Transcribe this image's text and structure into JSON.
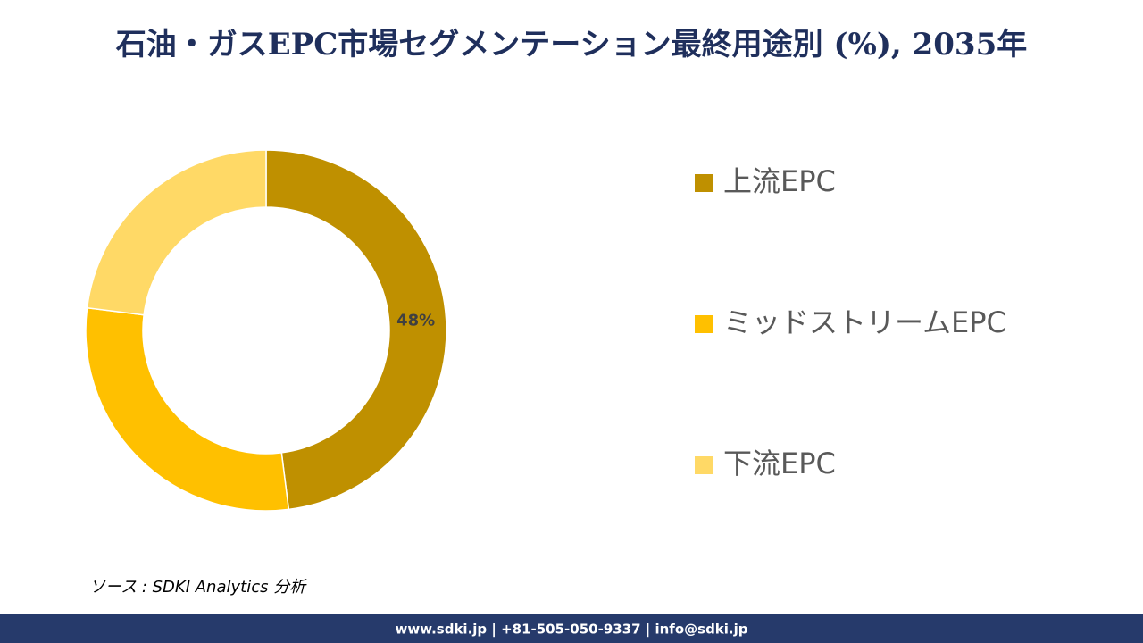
{
  "chart_data": {
    "type": "donut",
    "title": "石油・ガスEPC市場セグメンテーション最終用途別 (%), 2035年",
    "categories": [
      "上流EPC",
      "ミッドストリームEPC",
      "下流EPC"
    ],
    "values": [
      48,
      29,
      23
    ],
    "value_labels": [
      "48%",
      null,
      null
    ],
    "colors": [
      "#BF9000",
      "#FFC000",
      "#FFD966"
    ],
    "legend": "right"
  },
  "source": "ソース : SDKI Analytics 分析",
  "footer": "www.sdki.jp | +81-505-050-9337 | info@sdki.jp"
}
